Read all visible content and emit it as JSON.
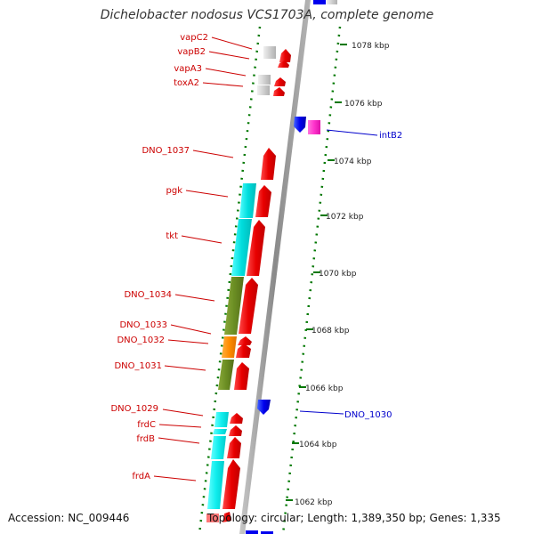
{
  "title": "Dichelobacter nodosus VCS1703A, complete genome",
  "footer": {
    "accession": "Accession: NC_009446",
    "topology_prefix": "Topology:",
    "topology": "circular",
    "length_prefix": "; Length:",
    "length": "1,389,350 bp",
    "genes_prefix": "; Genes:",
    "genes": "1,335"
  },
  "scale": {
    "tick_labels": [
      "1078 kbp",
      "1076 kbp",
      "1074 kbp",
      "1072 kbp",
      "1070 kbp",
      "1068 kbp",
      "1066 kbp",
      "1064 kbp",
      "1062 kbp"
    ]
  },
  "genes": [
    {
      "name": "vapC2",
      "strand": "forward",
      "color": "#dddddd"
    },
    {
      "name": "vapB2",
      "strand": "forward",
      "color": "#dddddd"
    },
    {
      "name": "vapA3",
      "strand": "forward",
      "color": "#dddddd"
    },
    {
      "name": "toxA2",
      "strand": "forward",
      "color": "#dddddd"
    },
    {
      "name": "intB2",
      "strand": "reverse",
      "color": "#ff33cc"
    },
    {
      "name": "DNO_1037",
      "strand": "forward",
      "color": "#ff0000"
    },
    {
      "name": "pgk",
      "strand": "forward",
      "color": "#00dddd"
    },
    {
      "name": "tkt",
      "strand": "forward",
      "color": "#00dddd"
    },
    {
      "name": "DNO_1034",
      "strand": "forward",
      "color": "#6b8e23"
    },
    {
      "name": "DNO_1033",
      "strand": "forward",
      "color": "#ff8c00"
    },
    {
      "name": "DNO_1032",
      "strand": "forward",
      "color": "#ff8c00"
    },
    {
      "name": "DNO_1031",
      "strand": "forward",
      "color": "#6b8e23"
    },
    {
      "name": "DNO_1030",
      "strand": "reverse",
      "color": "#0000ff"
    },
    {
      "name": "DNO_1029",
      "strand": "forward",
      "color": "#00ffff"
    },
    {
      "name": "frdC",
      "strand": "forward",
      "color": "#00ffff"
    },
    {
      "name": "frdB",
      "strand": "forward",
      "color": "#00ffff"
    },
    {
      "name": "frdA",
      "strand": "forward",
      "color": "#00ffff"
    }
  ],
  "colors": {
    "forward_label": "#cc0000",
    "reverse_label": "#0000cc",
    "forward_arrow": "#ff0000",
    "reverse_arrow": "#0000ff",
    "backbone": "#999999",
    "tick": "#007700"
  }
}
